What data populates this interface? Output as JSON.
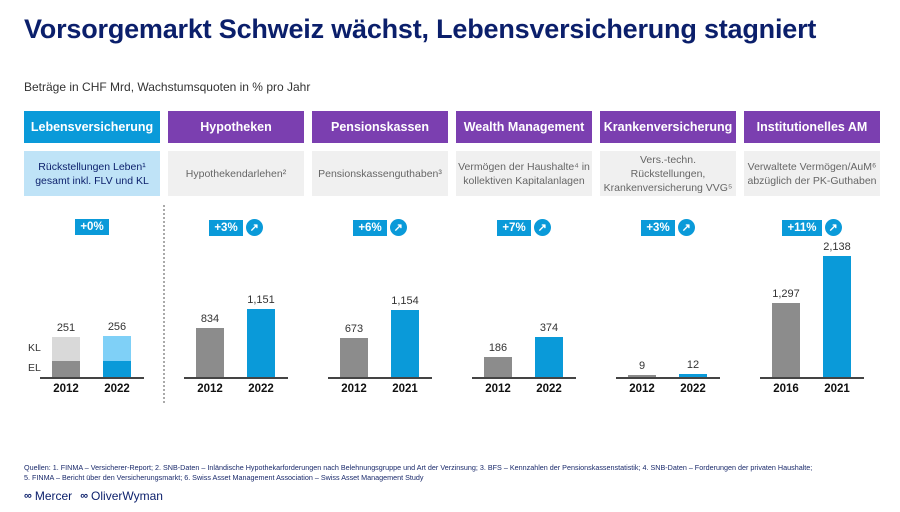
{
  "title": "Vorsorgemarkt Schweiz wächst, Lebensversicherung stagniert",
  "subtitle": "Beträge in CHF Mrd, Wachstumsquoten in % pro Jahr",
  "colors": {
    "header_blue": "#0a9ad9",
    "header_purple": "#7b3fb0",
    "bar_old": "#8c8c8c",
    "bar_new": "#0a9ad9",
    "kl_old": "#d9d9d9",
    "kl_new": "#7fd0f7",
    "title": "#0b1f6b"
  },
  "chart_data": [
    {
      "type": "bar",
      "header": "Lebensversicherung",
      "description": "Rückstellungen Leben¹ gesamt inkl. FLV und KL",
      "growth": "+0%",
      "growth_arrow": false,
      "categories": [
        "2012",
        "2022"
      ],
      "values": [
        251,
        256
      ],
      "value_labels": [
        "251",
        "256"
      ],
      "stack_labels": [
        "KL",
        "EL"
      ],
      "stacked": true
    },
    {
      "type": "bar",
      "header": "Hypotheken",
      "description": "Hypothekendarlehen²",
      "growth": "+3%",
      "growth_arrow": true,
      "categories": [
        "2012",
        "2022"
      ],
      "values": [
        834,
        1151
      ],
      "value_labels": [
        "834",
        "1,151"
      ]
    },
    {
      "type": "bar",
      "header": "Pensionskassen",
      "description": "Pensionskassenguthaben³",
      "growth": "+6%",
      "growth_arrow": true,
      "categories": [
        "2012",
        "2021"
      ],
      "values": [
        673,
        1154
      ],
      "value_labels": [
        "673",
        "1,154"
      ]
    },
    {
      "type": "bar",
      "header": "Wealth Management",
      "description": "Vermögen der Haushalte⁴ in kollektiven Kapitalanlagen",
      "growth": "+7%",
      "growth_arrow": true,
      "categories": [
        "2012",
        "2022"
      ],
      "values": [
        186,
        374
      ],
      "value_labels": [
        "186",
        "374"
      ]
    },
    {
      "type": "bar",
      "header": "Krankenversicherung",
      "description": "Vers.-techn. Rückstellungen, Krankenversicherung VVG⁵",
      "growth": "+3%",
      "growth_arrow": true,
      "categories": [
        "2012",
        "2022"
      ],
      "values": [
        9,
        12
      ],
      "value_labels": [
        "9",
        "12"
      ]
    },
    {
      "type": "bar",
      "header": "Institutionelles AM",
      "description": "Verwaltete Vermögen/AuM⁶ abzüglich der PK-Guthaben",
      "growth": "+11%",
      "growth_arrow": true,
      "categories": [
        "2016",
        "2021"
      ],
      "values": [
        1297,
        2138
      ],
      "value_labels": [
        "1,297",
        "2,138"
      ]
    }
  ],
  "arrow_icon": "arrow-up-right-icon",
  "sources": [
    "Quellen: 1. FINMA – Versicherer-Report; 2. SNB-Daten – Inländische Hypothekarforderungen nach Belehnungsgruppe und Art der Verzinsung; 3. BFS – Kennzahlen der Pensionskassenstatistik; 4. SNB-Daten – Forderungen der privaten Haushalte;",
    "5. FINMA – Bericht über den Versicherungsmarkt; 6. Swiss Asset Management Association – Swiss Asset Management Study"
  ],
  "logos": [
    "Mercer",
    "OliverWyman"
  ]
}
